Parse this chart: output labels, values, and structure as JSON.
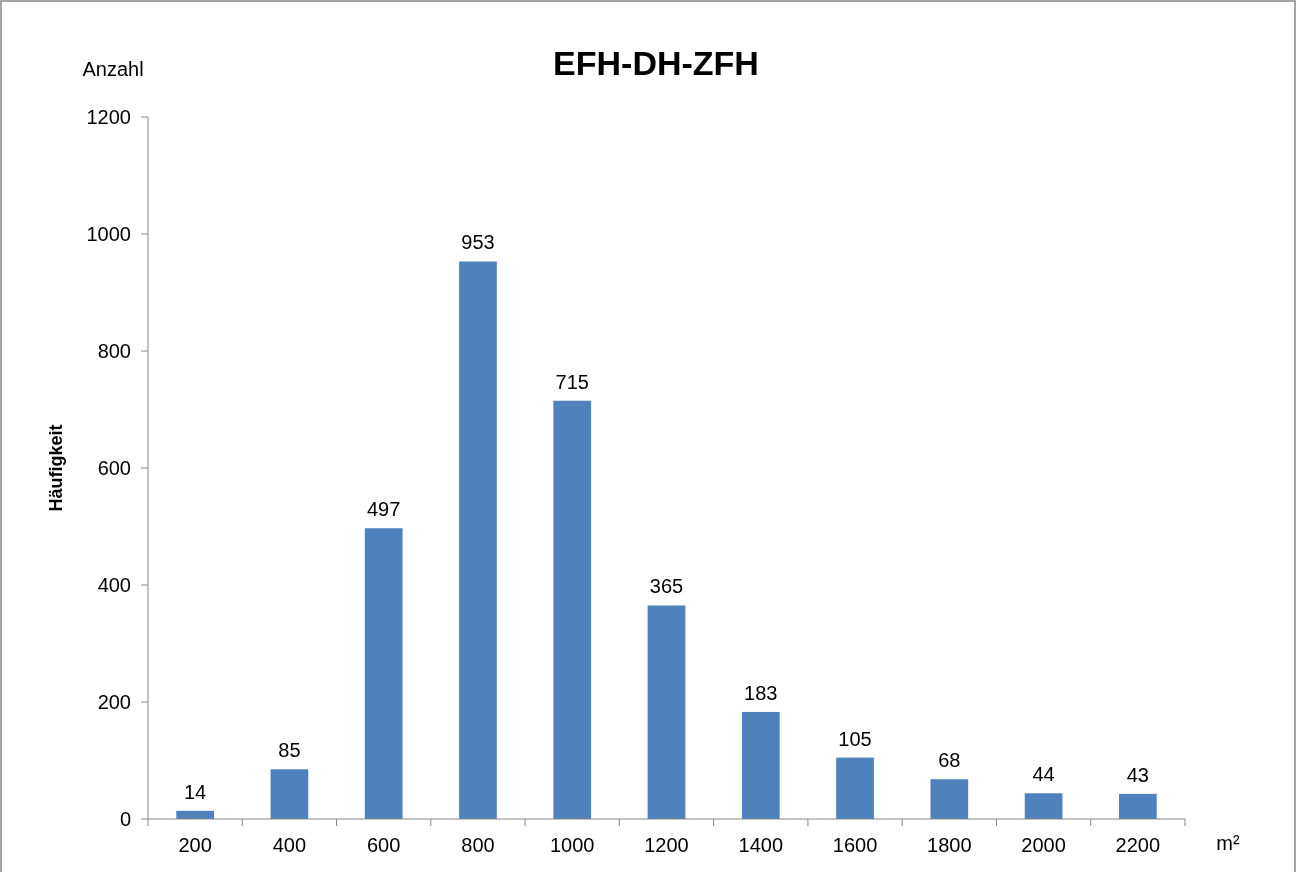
{
  "chart_data": {
    "type": "bar",
    "title": "EFH-DH-ZFH",
    "ylabel": "Häufigkeit",
    "xlabel": "m²",
    "annotations": [
      "Anzahl"
    ],
    "categories": [
      "200",
      "400",
      "600",
      "800",
      "1000",
      "1200",
      "1400",
      "1600",
      "1800",
      "2000",
      "2200"
    ],
    "values": [
      14,
      85,
      497,
      953,
      715,
      365,
      183,
      105,
      68,
      44,
      43
    ],
    "color": "#4f81bd",
    "ylim": [
      0,
      1200
    ],
    "yticks": [
      0,
      200,
      400,
      600,
      800,
      1000,
      1200
    ],
    "grid": false,
    "data_labels": true
  }
}
